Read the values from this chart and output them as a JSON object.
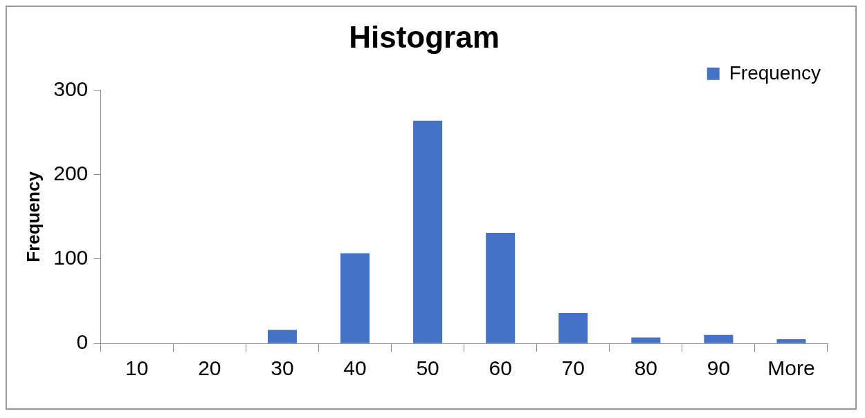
{
  "chart_data": {
    "type": "bar",
    "title": "Histogram",
    "ylabel": "Frequency",
    "categories": [
      "10",
      "20",
      "30",
      "40",
      "50",
      "60",
      "70",
      "80",
      "90",
      "More"
    ],
    "series": [
      {
        "name": "Frequency",
        "color": "#4472c4",
        "values": [
          0,
          0,
          16,
          107,
          264,
          131,
          36,
          7,
          10,
          5
        ]
      }
    ],
    "ylim": [
      0,
      300
    ],
    "yticks": [
      0,
      100,
      200,
      300
    ],
    "grid": false,
    "legend": "top right"
  }
}
